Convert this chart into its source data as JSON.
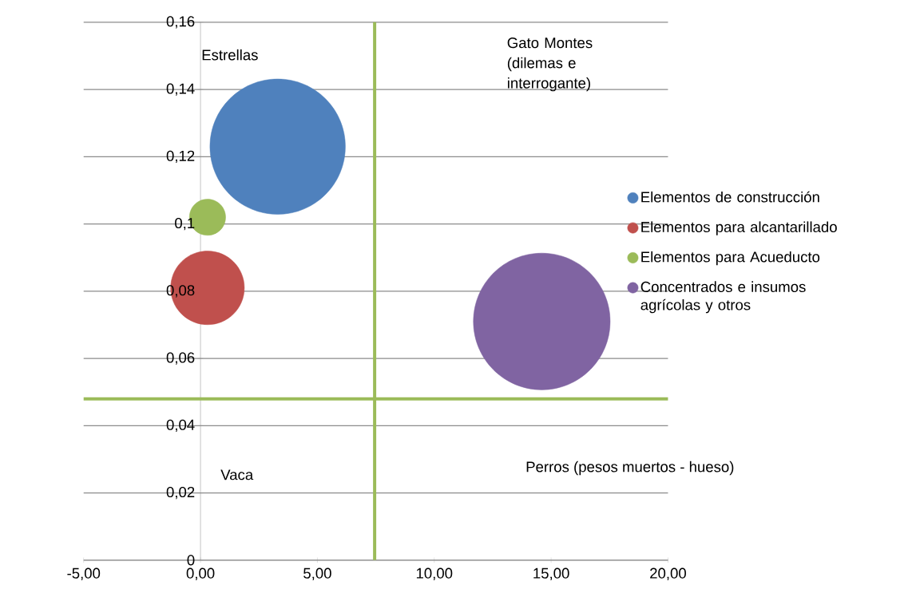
{
  "chart_data": {
    "type": "bubble",
    "xlim": [
      -5,
      20
    ],
    "xticks": [
      {
        "value": -5,
        "label": "-5,00"
      },
      {
        "value": 0,
        "label": "0,00"
      },
      {
        "value": 5,
        "label": "5,00"
      },
      {
        "value": 10,
        "label": "10,00"
      },
      {
        "value": 15,
        "label": "15,00"
      },
      {
        "value": 20,
        "label": "20,00"
      }
    ],
    "ylim": [
      0,
      0.16
    ],
    "yticks": [
      0,
      {
        "value": 0.02,
        "label": "0,02"
      },
      {
        "value": 0.04,
        "label": "0,04"
      },
      {
        "value": 0.06,
        "label": "0,06"
      },
      {
        "value": 0.08,
        "label": "0,08"
      },
      {
        "value": 0.1,
        "label": "0,1"
      },
      {
        "value": 0.12,
        "label": "0,12"
      },
      {
        "value": 0.14,
        "label": "0,14"
      },
      {
        "value": 0.16,
        "label": "0,16"
      }
    ],
    "series": [
      {
        "name": "Elementos de construcción",
        "color": "#4f81bd",
        "x": [
          3.3
        ],
        "values": [
          0.123
        ],
        "sizes": [
          0.98
        ]
      },
      {
        "name": "Elementos para alcantarillado",
        "color": "#c0504d",
        "x": [
          0.3
        ],
        "values": [
          0.081
        ],
        "sizes": [
          0.29
        ]
      },
      {
        "name": "Elementos para Acueducto",
        "color": "#9bbb59",
        "x": [
          0.3
        ],
        "values": [
          0.102
        ],
        "sizes": [
          0.07
        ]
      },
      {
        "name": "Concentrados e insumos agrícolas y otros",
        "color": "#8064a2",
        "x": [
          14.6
        ],
        "values": [
          0.071
        ],
        "sizes": [
          1
        ]
      }
    ],
    "ref_lines": [
      {
        "axis": "x",
        "value": 7.45,
        "color": "#9bbb59"
      },
      {
        "axis": "y",
        "value": 0.048,
        "color": "#9bbb59"
      }
    ],
    "annotations": [
      "Estrellas",
      "Gato Montes (dilemas e interrogante)",
      "Vaca",
      "Perros (pesos muertos - hueso)"
    ],
    "grid": "y",
    "legend": "right"
  }
}
